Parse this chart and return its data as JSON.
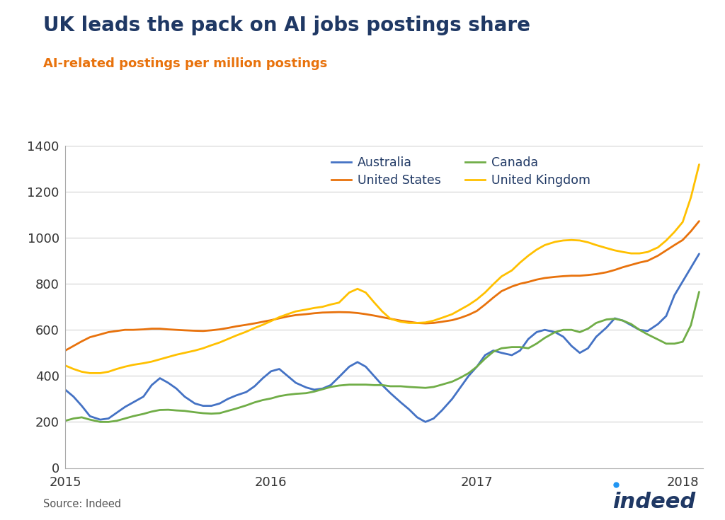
{
  "title": "UK leads the pack on AI jobs postings share",
  "subtitle": "AI-related postings per million postings",
  "title_color": "#1f3864",
  "subtitle_color": "#e8720c",
  "source_text": "Source: Indeed",
  "ylim": [
    0,
    1400
  ],
  "yticks": [
    0,
    200,
    400,
    600,
    800,
    1000,
    1200,
    1400
  ],
  "xlim_start": 2015.0,
  "xlim_end": 2018.1,
  "xtick_labels": [
    "2015",
    "2016",
    "2017",
    "2018"
  ],
  "xtick_positions": [
    2015.0,
    2016.0,
    2017.0,
    2018.0
  ],
  "background_color": "#ffffff",
  "series": {
    "Australia": {
      "color": "#4472c4",
      "data": [
        [
          2015.0,
          340
        ],
        [
          2015.04,
          310
        ],
        [
          2015.08,
          270
        ],
        [
          2015.12,
          225
        ],
        [
          2015.17,
          210
        ],
        [
          2015.21,
          215
        ],
        [
          2015.25,
          240
        ],
        [
          2015.29,
          265
        ],
        [
          2015.33,
          285
        ],
        [
          2015.38,
          310
        ],
        [
          2015.42,
          360
        ],
        [
          2015.46,
          390
        ],
        [
          2015.5,
          370
        ],
        [
          2015.54,
          345
        ],
        [
          2015.58,
          310
        ],
        [
          2015.63,
          280
        ],
        [
          2015.67,
          270
        ],
        [
          2015.71,
          270
        ],
        [
          2015.75,
          280
        ],
        [
          2015.79,
          300
        ],
        [
          2015.83,
          315
        ],
        [
          2015.88,
          330
        ],
        [
          2015.92,
          355
        ],
        [
          2015.96,
          390
        ],
        [
          2016.0,
          420
        ],
        [
          2016.04,
          430
        ],
        [
          2016.08,
          400
        ],
        [
          2016.12,
          370
        ],
        [
          2016.17,
          350
        ],
        [
          2016.21,
          340
        ],
        [
          2016.25,
          345
        ],
        [
          2016.29,
          360
        ],
        [
          2016.33,
          395
        ],
        [
          2016.38,
          440
        ],
        [
          2016.42,
          460
        ],
        [
          2016.46,
          440
        ],
        [
          2016.5,
          400
        ],
        [
          2016.54,
          360
        ],
        [
          2016.58,
          325
        ],
        [
          2016.63,
          285
        ],
        [
          2016.67,
          255
        ],
        [
          2016.71,
          220
        ],
        [
          2016.75,
          200
        ],
        [
          2016.79,
          215
        ],
        [
          2016.83,
          250
        ],
        [
          2016.88,
          300
        ],
        [
          2016.92,
          350
        ],
        [
          2016.96,
          400
        ],
        [
          2017.0,
          440
        ],
        [
          2017.04,
          490
        ],
        [
          2017.08,
          510
        ],
        [
          2017.12,
          500
        ],
        [
          2017.17,
          490
        ],
        [
          2017.21,
          510
        ],
        [
          2017.25,
          560
        ],
        [
          2017.29,
          590
        ],
        [
          2017.33,
          600
        ],
        [
          2017.38,
          590
        ],
        [
          2017.42,
          570
        ],
        [
          2017.46,
          530
        ],
        [
          2017.5,
          500
        ],
        [
          2017.54,
          520
        ],
        [
          2017.58,
          570
        ],
        [
          2017.63,
          610
        ],
        [
          2017.67,
          650
        ],
        [
          2017.71,
          640
        ],
        [
          2017.75,
          620
        ],
        [
          2017.79,
          600
        ],
        [
          2017.83,
          595
        ],
        [
          2017.88,
          625
        ],
        [
          2017.92,
          660
        ],
        [
          2017.96,
          750
        ],
        [
          2018.0,
          810
        ],
        [
          2018.04,
          870
        ],
        [
          2018.08,
          930
        ]
      ]
    },
    "Canada": {
      "color": "#70ad47",
      "data": [
        [
          2015.0,
          205
        ],
        [
          2015.04,
          215
        ],
        [
          2015.08,
          220
        ],
        [
          2015.12,
          210
        ],
        [
          2015.17,
          200
        ],
        [
          2015.21,
          200
        ],
        [
          2015.25,
          205
        ],
        [
          2015.29,
          215
        ],
        [
          2015.33,
          225
        ],
        [
          2015.38,
          235
        ],
        [
          2015.42,
          245
        ],
        [
          2015.46,
          252
        ],
        [
          2015.5,
          253
        ],
        [
          2015.54,
          250
        ],
        [
          2015.58,
          248
        ],
        [
          2015.63,
          242
        ],
        [
          2015.67,
          238
        ],
        [
          2015.71,
          236
        ],
        [
          2015.75,
          238
        ],
        [
          2015.79,
          248
        ],
        [
          2015.83,
          258
        ],
        [
          2015.88,
          272
        ],
        [
          2015.92,
          285
        ],
        [
          2015.96,
          295
        ],
        [
          2016.0,
          302
        ],
        [
          2016.04,
          312
        ],
        [
          2016.08,
          318
        ],
        [
          2016.12,
          322
        ],
        [
          2016.17,
          325
        ],
        [
          2016.21,
          332
        ],
        [
          2016.25,
          342
        ],
        [
          2016.29,
          352
        ],
        [
          2016.33,
          358
        ],
        [
          2016.38,
          362
        ],
        [
          2016.42,
          362
        ],
        [
          2016.46,
          362
        ],
        [
          2016.5,
          360
        ],
        [
          2016.54,
          360
        ],
        [
          2016.58,
          355
        ],
        [
          2016.63,
          355
        ],
        [
          2016.67,
          352
        ],
        [
          2016.71,
          350
        ],
        [
          2016.75,
          348
        ],
        [
          2016.79,
          352
        ],
        [
          2016.83,
          362
        ],
        [
          2016.88,
          375
        ],
        [
          2016.92,
          392
        ],
        [
          2016.96,
          412
        ],
        [
          2017.0,
          440
        ],
        [
          2017.04,
          475
        ],
        [
          2017.08,
          505
        ],
        [
          2017.12,
          520
        ],
        [
          2017.17,
          525
        ],
        [
          2017.21,
          525
        ],
        [
          2017.25,
          520
        ],
        [
          2017.29,
          540
        ],
        [
          2017.33,
          565
        ],
        [
          2017.38,
          590
        ],
        [
          2017.42,
          600
        ],
        [
          2017.46,
          600
        ],
        [
          2017.5,
          590
        ],
        [
          2017.54,
          605
        ],
        [
          2017.58,
          630
        ],
        [
          2017.63,
          645
        ],
        [
          2017.67,
          648
        ],
        [
          2017.71,
          640
        ],
        [
          2017.75,
          625
        ],
        [
          2017.79,
          600
        ],
        [
          2017.83,
          580
        ],
        [
          2017.88,
          558
        ],
        [
          2017.92,
          540
        ],
        [
          2017.96,
          540
        ],
        [
          2018.0,
          548
        ],
        [
          2018.04,
          620
        ],
        [
          2018.08,
          765
        ]
      ]
    },
    "United States": {
      "color": "#e8720c",
      "data": [
        [
          2015.0,
          510
        ],
        [
          2015.04,
          530
        ],
        [
          2015.08,
          550
        ],
        [
          2015.12,
          568
        ],
        [
          2015.17,
          580
        ],
        [
          2015.21,
          590
        ],
        [
          2015.25,
          595
        ],
        [
          2015.29,
          600
        ],
        [
          2015.33,
          600
        ],
        [
          2015.38,
          602
        ],
        [
          2015.42,
          605
        ],
        [
          2015.46,
          605
        ],
        [
          2015.5,
          602
        ],
        [
          2015.54,
          600
        ],
        [
          2015.58,
          598
        ],
        [
          2015.63,
          596
        ],
        [
          2015.67,
          595
        ],
        [
          2015.71,
          598
        ],
        [
          2015.75,
          602
        ],
        [
          2015.79,
          608
        ],
        [
          2015.83,
          615
        ],
        [
          2015.88,
          622
        ],
        [
          2015.92,
          628
        ],
        [
          2015.96,
          635
        ],
        [
          2016.0,
          642
        ],
        [
          2016.04,
          650
        ],
        [
          2016.08,
          658
        ],
        [
          2016.12,
          664
        ],
        [
          2016.17,
          668
        ],
        [
          2016.21,
          672
        ],
        [
          2016.25,
          675
        ],
        [
          2016.29,
          676
        ],
        [
          2016.33,
          677
        ],
        [
          2016.38,
          676
        ],
        [
          2016.42,
          673
        ],
        [
          2016.46,
          668
        ],
        [
          2016.5,
          662
        ],
        [
          2016.54,
          655
        ],
        [
          2016.58,
          648
        ],
        [
          2016.63,
          640
        ],
        [
          2016.67,
          635
        ],
        [
          2016.71,
          630
        ],
        [
          2016.75,
          628
        ],
        [
          2016.79,
          630
        ],
        [
          2016.83,
          635
        ],
        [
          2016.88,
          642
        ],
        [
          2016.92,
          652
        ],
        [
          2016.96,
          665
        ],
        [
          2017.0,
          682
        ],
        [
          2017.04,
          710
        ],
        [
          2017.08,
          740
        ],
        [
          2017.12,
          768
        ],
        [
          2017.17,
          788
        ],
        [
          2017.21,
          800
        ],
        [
          2017.25,
          808
        ],
        [
          2017.29,
          818
        ],
        [
          2017.33,
          825
        ],
        [
          2017.38,
          830
        ],
        [
          2017.42,
          833
        ],
        [
          2017.46,
          835
        ],
        [
          2017.5,
          835
        ],
        [
          2017.54,
          838
        ],
        [
          2017.58,
          842
        ],
        [
          2017.63,
          850
        ],
        [
          2017.67,
          860
        ],
        [
          2017.71,
          872
        ],
        [
          2017.75,
          882
        ],
        [
          2017.79,
          892
        ],
        [
          2017.83,
          900
        ],
        [
          2017.88,
          922
        ],
        [
          2017.92,
          945
        ],
        [
          2017.96,
          968
        ],
        [
          2018.0,
          990
        ],
        [
          2018.04,
          1028
        ],
        [
          2018.08,
          1072
        ]
      ]
    },
    "United Kingdom": {
      "color": "#ffc000",
      "data": [
        [
          2015.0,
          445
        ],
        [
          2015.04,
          430
        ],
        [
          2015.08,
          418
        ],
        [
          2015.12,
          412
        ],
        [
          2015.17,
          412
        ],
        [
          2015.21,
          418
        ],
        [
          2015.25,
          430
        ],
        [
          2015.29,
          440
        ],
        [
          2015.33,
          448
        ],
        [
          2015.38,
          455
        ],
        [
          2015.42,
          462
        ],
        [
          2015.46,
          472
        ],
        [
          2015.5,
          482
        ],
        [
          2015.54,
          492
        ],
        [
          2015.58,
          500
        ],
        [
          2015.63,
          510
        ],
        [
          2015.67,
          520
        ],
        [
          2015.71,
          533
        ],
        [
          2015.75,
          545
        ],
        [
          2015.79,
          560
        ],
        [
          2015.83,
          575
        ],
        [
          2015.88,
          592
        ],
        [
          2015.92,
          608
        ],
        [
          2015.96,
          622
        ],
        [
          2016.0,
          638
        ],
        [
          2016.04,
          655
        ],
        [
          2016.08,
          668
        ],
        [
          2016.12,
          680
        ],
        [
          2016.17,
          688
        ],
        [
          2016.21,
          695
        ],
        [
          2016.25,
          700
        ],
        [
          2016.29,
          710
        ],
        [
          2016.33,
          718
        ],
        [
          2016.38,
          762
        ],
        [
          2016.42,
          778
        ],
        [
          2016.46,
          762
        ],
        [
          2016.5,
          720
        ],
        [
          2016.54,
          680
        ],
        [
          2016.58,
          648
        ],
        [
          2016.63,
          635
        ],
        [
          2016.67,
          630
        ],
        [
          2016.71,
          630
        ],
        [
          2016.75,
          632
        ],
        [
          2016.79,
          640
        ],
        [
          2016.83,
          652
        ],
        [
          2016.88,
          668
        ],
        [
          2016.92,
          688
        ],
        [
          2016.96,
          708
        ],
        [
          2017.0,
          732
        ],
        [
          2017.04,
          762
        ],
        [
          2017.08,
          798
        ],
        [
          2017.12,
          832
        ],
        [
          2017.17,
          858
        ],
        [
          2017.21,
          892
        ],
        [
          2017.25,
          922
        ],
        [
          2017.29,
          948
        ],
        [
          2017.33,
          968
        ],
        [
          2017.38,
          982
        ],
        [
          2017.42,
          988
        ],
        [
          2017.46,
          990
        ],
        [
          2017.5,
          988
        ],
        [
          2017.54,
          980
        ],
        [
          2017.58,
          968
        ],
        [
          2017.63,
          955
        ],
        [
          2017.67,
          945
        ],
        [
          2017.71,
          938
        ],
        [
          2017.75,
          932
        ],
        [
          2017.79,
          932
        ],
        [
          2017.83,
          938
        ],
        [
          2017.88,
          958
        ],
        [
          2017.92,
          988
        ],
        [
          2017.96,
          1025
        ],
        [
          2018.0,
          1068
        ],
        [
          2018.04,
          1175
        ],
        [
          2018.08,
          1318
        ]
      ]
    }
  },
  "legend_entries_row1": [
    {
      "label": "Australia",
      "color": "#4472c4"
    },
    {
      "label": "United States",
      "color": "#e8720c"
    }
  ],
  "legend_entries_row2": [
    {
      "label": "Canada",
      "color": "#70ad47"
    },
    {
      "label": "United Kingdom",
      "color": "#ffc000"
    }
  ],
  "indeed_logo_color": "#1f3864",
  "indeed_dot_color": "#2196f3"
}
